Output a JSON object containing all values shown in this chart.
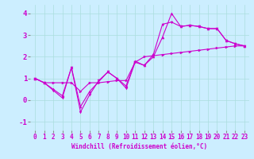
{
  "xlabel": "Windchill (Refroidissement éolien,°C)",
  "bg_color": "#cceeff",
  "line_color": "#cc00cc",
  "xlim": [
    -0.5,
    23.5
  ],
  "ylim": [
    -1.4,
    4.4
  ],
  "xticks": [
    0,
    1,
    2,
    3,
    4,
    5,
    6,
    7,
    8,
    9,
    10,
    11,
    12,
    13,
    14,
    15,
    16,
    17,
    18,
    19,
    20,
    21,
    22,
    23
  ],
  "yticks": [
    -1,
    0,
    1,
    2,
    3,
    4
  ],
  "line1_x": [
    0,
    1,
    2,
    3,
    4,
    5,
    6,
    7,
    8,
    9,
    10,
    11,
    12,
    13,
    14,
    15,
    16,
    17,
    18,
    19,
    20,
    21,
    22,
    23
  ],
  "line1_y": [
    1.0,
    0.8,
    0.8,
    0.8,
    0.8,
    0.4,
    0.8,
    0.8,
    0.85,
    0.9,
    0.9,
    1.75,
    2.0,
    2.05,
    2.1,
    2.15,
    2.2,
    2.25,
    2.3,
    2.35,
    2.4,
    2.45,
    2.5,
    2.5
  ],
  "line2_x": [
    0,
    1,
    2,
    3,
    4,
    5,
    6,
    7,
    8,
    9,
    10,
    11,
    12,
    13,
    14,
    15,
    16,
    17,
    18,
    19,
    20,
    21,
    22,
    23
  ],
  "line2_y": [
    1.0,
    0.8,
    0.5,
    0.2,
    1.5,
    -0.3,
    0.4,
    0.85,
    1.3,
    1.0,
    0.65,
    1.8,
    1.6,
    2.0,
    2.9,
    4.0,
    3.4,
    3.45,
    3.4,
    3.3,
    3.3,
    2.75,
    2.6,
    2.5
  ],
  "line3_x": [
    0,
    1,
    2,
    3,
    4,
    5,
    6,
    7,
    8,
    9,
    10,
    11,
    12,
    13,
    14,
    15,
    16,
    17,
    18,
    19,
    20,
    21,
    22,
    23
  ],
  "line3_y": [
    1.0,
    0.8,
    0.45,
    0.1,
    1.5,
    -0.55,
    0.25,
    0.9,
    1.3,
    1.0,
    0.55,
    1.75,
    1.6,
    2.1,
    3.5,
    3.6,
    3.4,
    3.45,
    3.4,
    3.3,
    3.3,
    2.75,
    2.6,
    2.5
  ],
  "grid_color": "#aadddd",
  "xlabel_fontsize": 5.5,
  "tick_fontsize": 5.5,
  "ytick_fontsize": 6.5,
  "lw": 0.8,
  "markersize": 2.2
}
